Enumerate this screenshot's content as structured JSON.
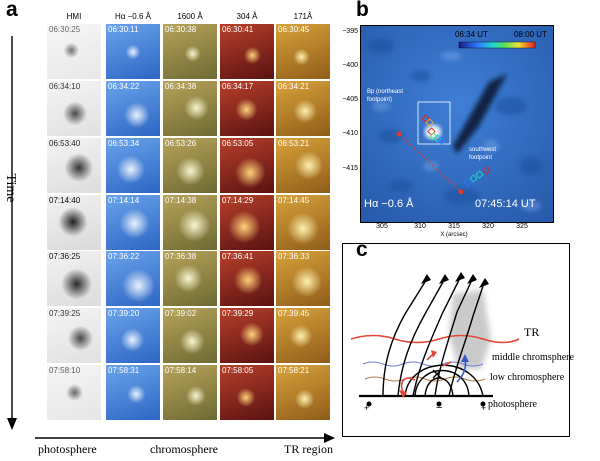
{
  "panel_a": {
    "letter": "a",
    "columns": [
      "HMI",
      "Hα −0.6 Å",
      "1600 Å",
      "304 Å",
      "171Å"
    ],
    "rows": [
      [
        "06:30:25",
        "06:30:11",
        "06:30:38",
        "06:30:41",
        "06:30:45"
      ],
      [
        "06:34:10",
        "06:34:22",
        "06:34:38",
        "06:34:17",
        "06:34:21"
      ],
      [
        "06:53:40",
        "06:53:34",
        "06:53:26",
        "06:53:05",
        "06:53:21"
      ],
      [
        "07:14:40",
        "07:14:14",
        "07:14:38",
        "07:14:29",
        "07:14:45"
      ],
      [
        "07:36:25",
        "07:36:22",
        "07:36:38",
        "07:36:41",
        "07:36:33"
      ],
      [
        "07:39:25",
        "07:39:20",
        "07:39:02",
        "07:39:29",
        "07:39:45"
      ],
      [
        "07:58:10",
        "07:58:31",
        "07:58:14",
        "07:58:05",
        "07:58:21"
      ]
    ],
    "time_axis_label": "Time",
    "bottom_labels": [
      "photosphere",
      "chromosphere",
      "TR region"
    ]
  },
  "panel_b": {
    "letter": "b",
    "colorbar_start": "06:34 UT",
    "colorbar_end": "08:00 UT",
    "y_ticks": [
      "−395",
      "−400",
      "−405",
      "−410",
      "−415"
    ],
    "x_ticks": [
      "305",
      "310",
      "315",
      "320",
      "325"
    ],
    "x_label": "X (arcsec)",
    "annotation_northeast": "Bp (northeast footpoint)",
    "annotation_southwest": "southwest footpoint",
    "channel_label": "Hα −0.6 Å",
    "timestamp": "07:45:14 UT"
  },
  "panel_c": {
    "letter": "c",
    "labels": {
      "tr": "TR",
      "middle": "middle chromsphere",
      "low": "low chromosphere",
      "photo": "photosphere"
    },
    "polarity_left": "+",
    "polarity_mid": "−",
    "polarity_right": "+"
  },
  "colors": {
    "tr_line": "#e2483a",
    "middle_line": "#6f7fd0",
    "low_line": "#b07a4a",
    "ha_blue": "#3d7ad6"
  }
}
